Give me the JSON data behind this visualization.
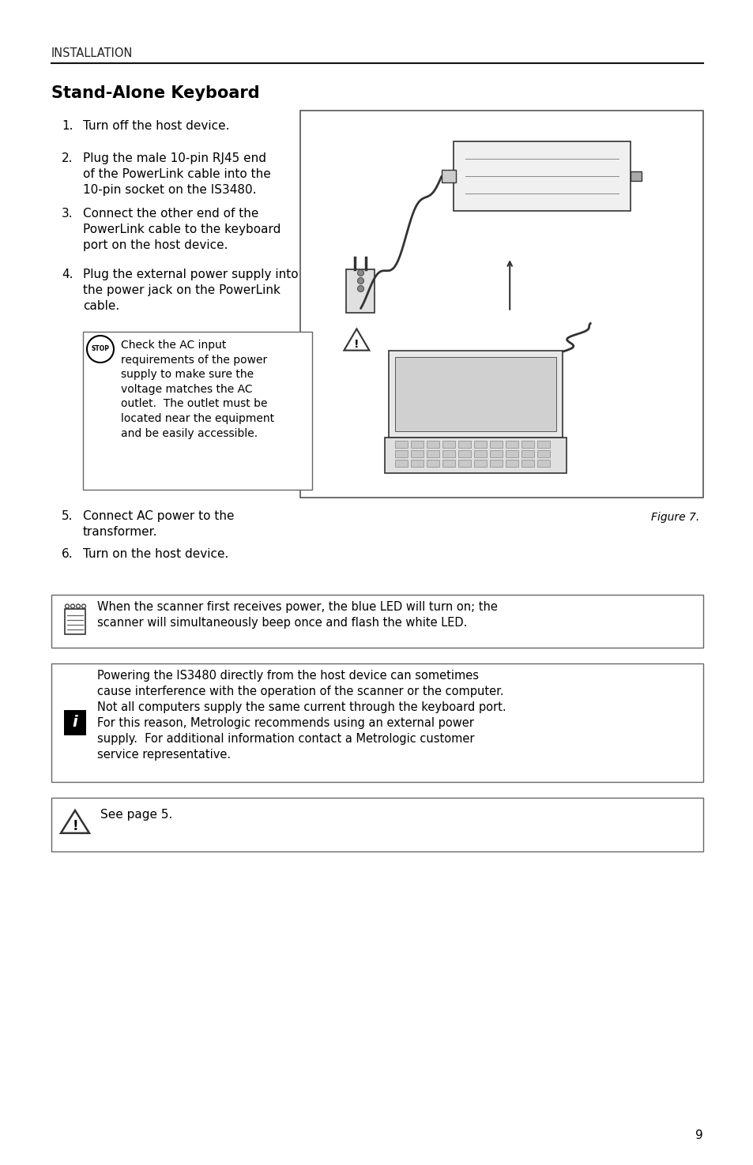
{
  "page_bg": "#ffffff",
  "header_text": "INSTALLATION",
  "title": "Stand-Alone Keyboard",
  "steps": [
    "Turn off the host device.",
    "Plug the male 10-pin RJ45 end\nof the PowerLink cable into the\n10-pin socket on the IS3480.",
    "Connect the other end of the\nPowerLink cable to the keyboard\nport on the host device.",
    "Plug the external power supply into\nthe power jack on the PowerLink\ncable.",
    "Connect AC power to the\ntransformer.",
    "Turn on the host device."
  ],
  "stop_box_text": "Check the AC input\nrequirements of the power\nsupply to make sure the\nvoltage matches the AC\noutlet.  The outlet must be\nlocated near the equipment\nand be easily accessible.",
  "note1_text": "When the scanner first receives power, the blue LED will turn on; the\nscanner will simultaneously beep once and flash the white LED.",
  "info_text": "Powering the IS3480 directly from the host device can sometimes\ncause interference with the operation of the scanner or the computer.\nNot all computers supply the same current through the keyboard port.\nFor this reason, Metrologic recommends using an external power\nsupply.  For additional information contact a Metrologic customer\nservice representative.",
  "warning_text": "See page 5.",
  "figure_caption": "Figure 7.",
  "page_number": "9"
}
